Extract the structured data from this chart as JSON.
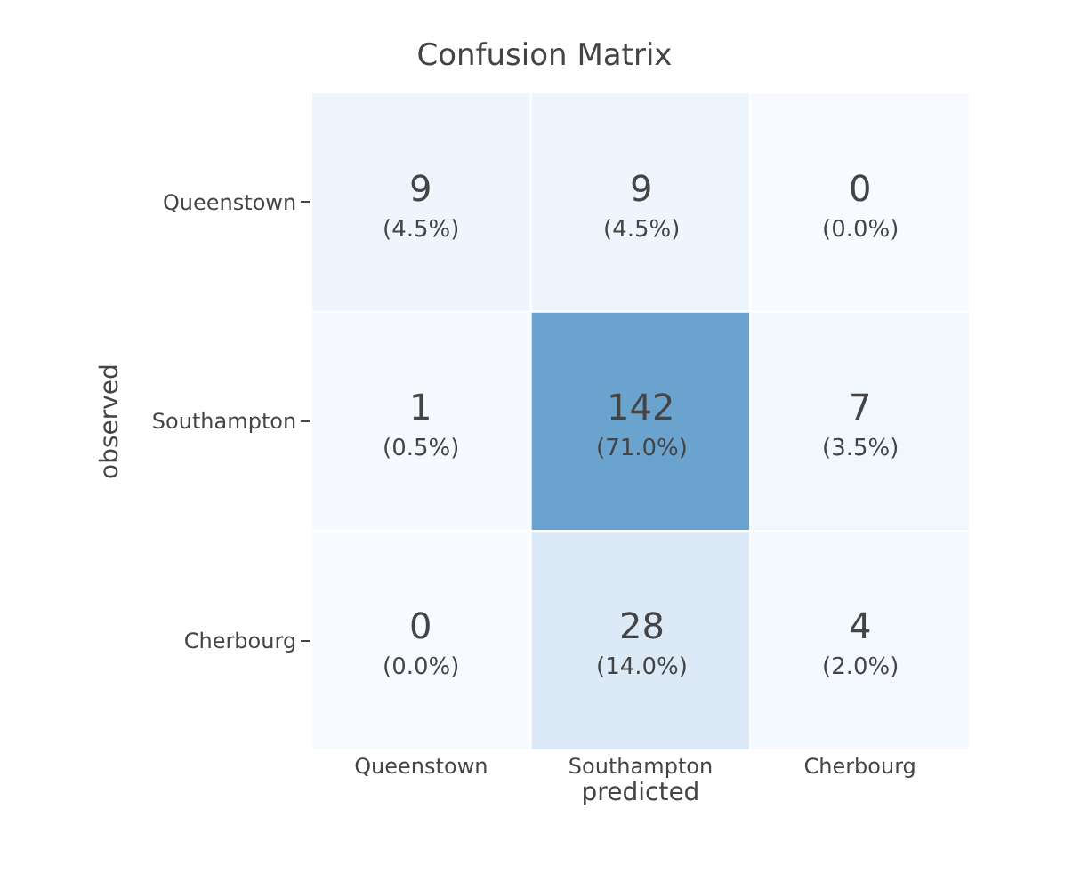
{
  "chart_data": {
    "type": "heatmap",
    "title": "Confusion Matrix",
    "xlabel": "predicted",
    "ylabel": "observed",
    "categories": [
      "Queenstown",
      "Southampton",
      "Cherbourg"
    ],
    "y_categories": [
      "Queenstown",
      "Southampton",
      "Cherbourg"
    ],
    "cells": [
      [
        9,
        9,
        0
      ],
      [
        1,
        142,
        7
      ],
      [
        0,
        28,
        4
      ]
    ],
    "data_labels": true,
    "annotations": [
      "(4.5%)",
      "(4.5%)",
      "(0.0%)",
      "(0.5%)",
      "(71.0%)",
      "(3.5%)",
      "(0.0%)",
      "(14.0%)",
      "(2.0%)"
    ]
  }
}
